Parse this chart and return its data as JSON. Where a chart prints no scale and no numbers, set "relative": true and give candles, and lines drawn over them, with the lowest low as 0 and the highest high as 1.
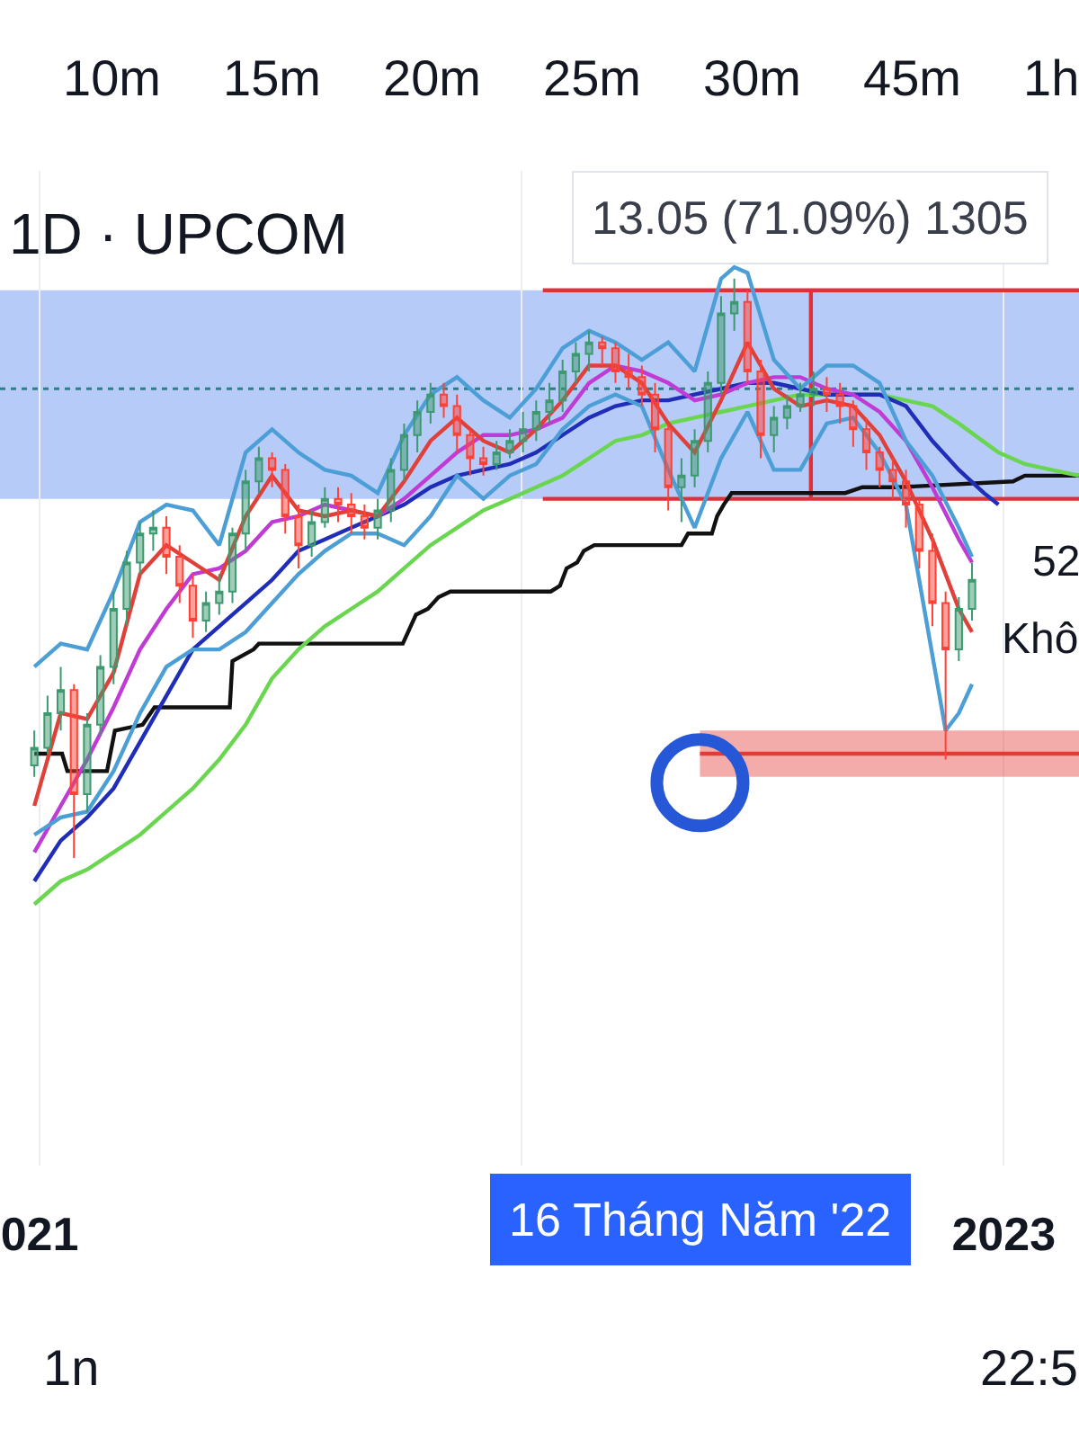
{
  "chart_data": {
    "type": "candlestick",
    "title": "1D · UPCOM",
    "relative": true,
    "x": [
      "2020-12-28",
      "2021-01-07",
      "2021-01-17",
      "2021-01-27",
      "2021-02-06",
      "2021-02-16",
      "2021-02-26",
      "2021-03-08",
      "2021-03-18",
      "2021-03-28",
      "2021-04-07",
      "2021-04-17",
      "2021-04-27",
      "2021-05-07",
      "2021-05-17",
      "2021-05-27",
      "2021-06-06",
      "2021-06-16",
      "2021-06-26",
      "2021-07-06",
      "2021-07-16",
      "2021-07-26",
      "2021-08-05",
      "2021-08-15",
      "2021-08-25",
      "2021-09-04",
      "2021-09-14",
      "2021-09-24",
      "2021-10-04",
      "2021-10-14",
      "2021-10-24",
      "2021-11-03",
      "2021-11-13",
      "2021-11-23",
      "2021-12-03",
      "2021-12-13",
      "2021-12-23",
      "2022-01-02",
      "2022-01-12",
      "2022-01-22",
      "2022-02-01",
      "2022-02-11",
      "2022-02-21",
      "2022-03-03",
      "2022-03-13",
      "2022-03-23",
      "2022-04-02",
      "2022-04-12",
      "2022-04-22",
      "2022-05-02",
      "2022-05-12",
      "2022-05-22",
      "2022-06-01",
      "2022-06-11",
      "2022-06-21",
      "2022-07-01",
      "2022-07-11",
      "2022-07-21",
      "2022-07-31",
      "2022-08-10",
      "2022-08-20",
      "2022-08-30",
      "2022-09-09",
      "2022-09-19",
      "2022-09-29",
      "2022-10-09",
      "2022-10-19",
      "2022-10-29",
      "2022-11-08",
      "2022-11-18",
      "2022-11-28",
      "2022-12-08"
    ],
    "ohlc": [
      [
        0.16,
        0.22,
        0.14,
        0.19
      ],
      [
        0.19,
        0.28,
        0.18,
        0.25
      ],
      [
        0.25,
        0.33,
        0.22,
        0.29
      ],
      [
        0.29,
        0.3,
        0.0,
        0.11
      ],
      [
        0.11,
        0.25,
        0.08,
        0.23
      ],
      [
        0.23,
        0.35,
        0.21,
        0.33
      ],
      [
        0.33,
        0.46,
        0.3,
        0.43
      ],
      [
        0.43,
        0.53,
        0.4,
        0.51
      ],
      [
        0.51,
        0.58,
        0.49,
        0.56
      ],
      [
        0.56,
        0.6,
        0.53,
        0.57
      ],
      [
        0.57,
        0.59,
        0.49,
        0.52
      ],
      [
        0.52,
        0.54,
        0.44,
        0.47
      ],
      [
        0.47,
        0.49,
        0.38,
        0.41
      ],
      [
        0.41,
        0.46,
        0.39,
        0.44
      ],
      [
        0.44,
        0.49,
        0.42,
        0.46
      ],
      [
        0.46,
        0.57,
        0.44,
        0.56
      ],
      [
        0.56,
        0.67,
        0.53,
        0.65
      ],
      [
        0.65,
        0.71,
        0.63,
        0.69
      ],
      [
        0.69,
        0.7,
        0.64,
        0.67
      ],
      [
        0.67,
        0.68,
        0.56,
        0.59
      ],
      [
        0.59,
        0.61,
        0.5,
        0.54
      ],
      [
        0.54,
        0.6,
        0.52,
        0.58
      ],
      [
        0.58,
        0.64,
        0.57,
        0.62
      ],
      [
        0.62,
        0.64,
        0.58,
        0.61
      ],
      [
        0.61,
        0.63,
        0.56,
        0.59
      ],
      [
        0.59,
        0.61,
        0.55,
        0.57
      ],
      [
        0.57,
        0.62,
        0.55,
        0.6
      ],
      [
        0.6,
        0.69,
        0.58,
        0.67
      ],
      [
        0.67,
        0.75,
        0.65,
        0.73
      ],
      [
        0.73,
        0.79,
        0.7,
        0.77
      ],
      [
        0.77,
        0.82,
        0.75,
        0.8
      ],
      [
        0.8,
        0.82,
        0.76,
        0.78
      ],
      [
        0.78,
        0.8,
        0.7,
        0.73
      ],
      [
        0.73,
        0.74,
        0.66,
        0.69
      ],
      [
        0.69,
        0.71,
        0.66,
        0.68
      ],
      [
        0.68,
        0.72,
        0.67,
        0.7
      ],
      [
        0.7,
        0.74,
        0.69,
        0.72
      ],
      [
        0.72,
        0.77,
        0.7,
        0.74
      ],
      [
        0.74,
        0.79,
        0.72,
        0.77
      ],
      [
        0.77,
        0.82,
        0.75,
        0.79
      ],
      [
        0.79,
        0.86,
        0.77,
        0.84
      ],
      [
        0.84,
        0.89,
        0.82,
        0.87
      ],
      [
        0.87,
        0.91,
        0.84,
        0.89
      ],
      [
        0.89,
        0.9,
        0.85,
        0.88
      ],
      [
        0.88,
        0.89,
        0.82,
        0.84
      ],
      [
        0.84,
        0.87,
        0.81,
        0.83
      ],
      [
        0.83,
        0.85,
        0.78,
        0.8
      ],
      [
        0.8,
        0.82,
        0.7,
        0.74
      ],
      [
        0.74,
        0.75,
        0.6,
        0.64
      ],
      [
        0.64,
        0.69,
        0.58,
        0.66
      ],
      [
        0.66,
        0.74,
        0.64,
        0.72
      ],
      [
        0.72,
        0.84,
        0.7,
        0.82
      ],
      [
        0.82,
        0.97,
        0.8,
        0.94
      ],
      [
        0.94,
        1.0,
        0.91,
        0.96
      ],
      [
        0.96,
        0.98,
        0.82,
        0.84
      ],
      [
        0.84,
        0.86,
        0.69,
        0.73
      ],
      [
        0.73,
        0.78,
        0.7,
        0.76
      ],
      [
        0.76,
        0.8,
        0.74,
        0.78
      ],
      [
        0.78,
        0.82,
        0.77,
        0.8
      ],
      [
        0.8,
        0.84,
        0.78,
        0.81
      ],
      [
        0.81,
        0.83,
        0.77,
        0.8
      ],
      [
        0.8,
        0.82,
        0.75,
        0.78
      ],
      [
        0.78,
        0.79,
        0.71,
        0.74
      ],
      [
        0.74,
        0.76,
        0.67,
        0.7
      ],
      [
        0.7,
        0.71,
        0.64,
        0.67
      ],
      [
        0.67,
        0.69,
        0.62,
        0.65
      ],
      [
        0.65,
        0.67,
        0.57,
        0.61
      ],
      [
        0.61,
        0.62,
        0.5,
        0.53
      ],
      [
        0.53,
        0.56,
        0.4,
        0.44
      ],
      [
        0.44,
        0.46,
        0.17,
        0.36
      ],
      [
        0.36,
        0.45,
        0.34,
        0.43
      ],
      [
        0.43,
        0.51,
        0.41,
        0.48
      ]
    ],
    "xlim": [
      "2020-12-02",
      "2023-02-27"
    ],
    "xticks": [
      {
        "value": "2021-01-01",
        "label": "021"
      },
      {
        "value": "2022-01-01",
        "label": null
      },
      {
        "value": "2023-01-01",
        "label": "2023"
      }
    ],
    "grid": "x",
    "bands": [
      {
        "axis": "y",
        "from": 0.62,
        "to": 0.98,
        "color": "#b7cbf8"
      }
    ],
    "ref_lines": [
      {
        "axis": "y",
        "value": 0.81,
        "color": "#2e7d86",
        "line_style": "dotted"
      }
    ],
    "series": [
      {
        "type": "line",
        "color": "#e0303a",
        "x": [
          "2022-01-17",
          "2023-02-27"
        ],
        "values": [
          0.98,
          0.98
        ]
      },
      {
        "type": "line",
        "color": "#e0303a",
        "x": [
          "2022-01-17",
          "2023-02-27"
        ],
        "values": [
          0.62,
          0.62
        ]
      },
      {
        "type": "line",
        "color": "#e0303a",
        "x": [
          "2022-08-08",
          "2022-08-08"
        ],
        "values": [
          0.62,
          0.98
        ]
      },
      {
        "type": "line",
        "color": "#111111",
        "x": [
          "2020-12-28",
          "2021-01-18",
          "2021-01-22",
          "2021-02-21",
          "2021-02-27",
          "2021-03-20",
          "2021-03-29",
          "2021-05-25",
          "2021-05-27",
          "2021-06-12",
          "2021-06-16",
          "2021-10-03",
          "2021-10-13",
          "2021-10-22",
          "2021-10-30",
          "2021-11-08",
          "2022-01-23",
          "2022-01-30",
          "2022-02-04",
          "2022-02-12",
          "2022-02-17",
          "2022-02-25",
          "2022-05-02",
          "2022-05-07",
          "2022-05-25",
          "2022-05-29",
          "2022-06-03",
          "2022-06-09",
          "2022-09-03",
          "2022-09-16",
          "2022-10-13",
          "2023-01-08",
          "2023-01-17",
          "2023-02-27"
        ],
        "values": [
          0.18,
          0.18,
          0.15,
          0.15,
          0.22,
          0.23,
          0.26,
          0.26,
          0.34,
          0.36,
          0.37,
          0.37,
          0.42,
          0.43,
          0.45,
          0.46,
          0.46,
          0.47,
          0.5,
          0.51,
          0.53,
          0.54,
          0.54,
          0.56,
          0.56,
          0.59,
          0.61,
          0.63,
          0.63,
          0.64,
          0.64,
          0.65,
          0.66,
          0.66
        ]
      },
      {
        "type": "line",
        "color": "#6ad64f",
        "x": [
          "2020-12-28",
          "2021-01-17",
          "2021-02-06",
          "2021-02-26",
          "2021-03-18",
          "2021-04-07",
          "2021-04-27",
          "2021-05-17",
          "2021-06-06",
          "2021-06-26",
          "2021-07-16",
          "2021-08-05",
          "2021-08-25",
          "2021-09-14",
          "2021-10-04",
          "2021-10-24",
          "2021-11-13",
          "2021-12-03",
          "2021-12-23",
          "2022-01-12",
          "2022-02-01",
          "2022-02-21",
          "2022-03-13",
          "2022-04-02",
          "2022-04-22",
          "2022-05-12",
          "2022-06-01",
          "2022-06-21",
          "2022-07-11",
          "2022-07-31",
          "2022-08-20",
          "2022-09-09",
          "2022-09-29",
          "2022-10-19",
          "2022-11-08",
          "2022-11-28",
          "2022-12-28",
          "2023-01-17",
          "2023-02-06",
          "2023-02-27"
        ],
        "values": [
          -0.08,
          -0.04,
          -0.02,
          0.01,
          0.04,
          0.08,
          0.12,
          0.17,
          0.23,
          0.31,
          0.36,
          0.4,
          0.43,
          0.46,
          0.5,
          0.54,
          0.57,
          0.6,
          0.62,
          0.64,
          0.66,
          0.69,
          0.72,
          0.73,
          0.75,
          0.76,
          0.77,
          0.78,
          0.79,
          0.8,
          0.8,
          0.8,
          0.8,
          0.79,
          0.78,
          0.75,
          0.7,
          0.68,
          0.67,
          0.66
        ]
      },
      {
        "type": "line",
        "color": "#1f2db8",
        "x": [
          "2020-12-28",
          "2021-01-17",
          "2021-02-06",
          "2021-02-26",
          "2021-03-18",
          "2021-04-07",
          "2021-04-27",
          "2021-05-17",
          "2021-06-06",
          "2021-06-26",
          "2021-07-16",
          "2021-08-05",
          "2021-08-25",
          "2021-09-14",
          "2021-10-04",
          "2021-10-24",
          "2021-11-13",
          "2021-12-03",
          "2021-12-23",
          "2022-01-12",
          "2022-02-01",
          "2022-02-21",
          "2022-03-13",
          "2022-04-02",
          "2022-04-22",
          "2022-05-12",
          "2022-06-01",
          "2022-06-21",
          "2022-07-11",
          "2022-07-31",
          "2022-08-20",
          "2022-09-09",
          "2022-09-29",
          "2022-10-19",
          "2022-11-08",
          "2022-11-28",
          "2022-12-17",
          "2022-12-28"
        ],
        "values": [
          -0.04,
          0.03,
          0.07,
          0.12,
          0.2,
          0.28,
          0.36,
          0.4,
          0.44,
          0.48,
          0.53,
          0.55,
          0.57,
          0.59,
          0.61,
          0.64,
          0.66,
          0.67,
          0.68,
          0.7,
          0.73,
          0.76,
          0.78,
          0.79,
          0.79,
          0.8,
          0.81,
          0.82,
          0.82,
          0.81,
          0.8,
          0.8,
          0.8,
          0.78,
          0.72,
          0.67,
          0.63,
          0.61
        ]
      },
      {
        "type": "line",
        "color": "#c03ad6",
        "x": [
          "2020-12-28",
          "2021-01-17",
          "2021-02-06",
          "2021-02-26",
          "2021-03-18",
          "2021-04-07",
          "2021-04-27",
          "2021-05-17",
          "2021-06-06",
          "2021-06-26",
          "2021-07-16",
          "2021-08-05",
          "2021-08-25",
          "2021-09-14",
          "2021-10-04",
          "2021-10-24",
          "2021-11-13",
          "2021-12-03",
          "2021-12-23",
          "2022-01-12",
          "2022-02-01",
          "2022-02-21",
          "2022-03-13",
          "2022-04-02",
          "2022-04-22",
          "2022-05-12",
          "2022-06-01",
          "2022-06-21",
          "2022-07-11",
          "2022-07-31",
          "2022-08-20",
          "2022-09-09",
          "2022-09-29",
          "2022-10-19",
          "2022-11-08",
          "2022-11-28",
          "2022-12-08"
        ],
        "values": [
          0.01,
          0.09,
          0.17,
          0.26,
          0.36,
          0.43,
          0.49,
          0.5,
          0.53,
          0.58,
          0.59,
          0.61,
          0.6,
          0.59,
          0.62,
          0.66,
          0.7,
          0.73,
          0.73,
          0.74,
          0.76,
          0.82,
          0.85,
          0.84,
          0.82,
          0.79,
          0.8,
          0.82,
          0.83,
          0.83,
          0.81,
          0.8,
          0.77,
          0.72,
          0.64,
          0.55,
          0.51
        ]
      },
      {
        "type": "line",
        "color": "#e0403a",
        "x": [
          "2020-12-28",
          "2021-01-17",
          "2021-02-06",
          "2021-02-26",
          "2021-03-18",
          "2021-04-07",
          "2021-04-27",
          "2021-05-17",
          "2021-06-06",
          "2021-06-26",
          "2021-07-16",
          "2021-08-05",
          "2021-08-25",
          "2021-09-14",
          "2021-10-04",
          "2021-10-24",
          "2021-11-13",
          "2021-12-03",
          "2021-12-23",
          "2022-01-12",
          "2022-02-01",
          "2022-02-21",
          "2022-03-13",
          "2022-04-02",
          "2022-04-22",
          "2022-05-12",
          "2022-06-01",
          "2022-06-21",
          "2022-07-11",
          "2022-07-31",
          "2022-08-20",
          "2022-09-09",
          "2022-09-29",
          "2022-10-19",
          "2022-11-08",
          "2022-11-28",
          "2022-12-08"
        ],
        "values": [
          0.09,
          0.25,
          0.24,
          0.32,
          0.49,
          0.54,
          0.51,
          0.48,
          0.59,
          0.66,
          0.6,
          0.59,
          0.6,
          0.59,
          0.65,
          0.72,
          0.76,
          0.72,
          0.7,
          0.74,
          0.79,
          0.85,
          0.85,
          0.82,
          0.75,
          0.7,
          0.79,
          0.89,
          0.81,
          0.78,
          0.79,
          0.78,
          0.73,
          0.65,
          0.55,
          0.43,
          0.39
        ]
      },
      {
        "type": "line",
        "color": "#4c9fd6",
        "x": [
          "2020-12-28",
          "2021-01-17",
          "2021-02-06",
          "2021-02-26",
          "2021-03-18",
          "2021-04-07",
          "2021-04-27",
          "2021-05-17",
          "2021-06-06",
          "2021-06-26",
          "2021-07-16",
          "2021-08-05",
          "2021-08-25",
          "2021-09-14",
          "2021-10-04",
          "2021-10-24",
          "2021-11-13",
          "2021-12-03",
          "2021-12-23",
          "2022-01-12",
          "2022-02-01",
          "2022-02-21",
          "2022-03-13",
          "2022-04-02",
          "2022-04-22",
          "2022-05-12",
          "2022-06-01",
          "2022-06-11",
          "2022-06-21",
          "2022-07-11",
          "2022-07-31",
          "2022-08-20",
          "2022-09-09",
          "2022-09-29",
          "2022-10-19",
          "2022-11-08",
          "2022-11-28",
          "2022-12-08"
        ],
        "values": [
          0.33,
          0.37,
          0.36,
          0.46,
          0.58,
          0.61,
          0.6,
          0.54,
          0.7,
          0.74,
          0.7,
          0.67,
          0.66,
          0.63,
          0.73,
          0.8,
          0.83,
          0.79,
          0.76,
          0.81,
          0.88,
          0.91,
          0.89,
          0.86,
          0.89,
          0.84,
          1.0,
          1.02,
          1.01,
          0.86,
          0.81,
          0.85,
          0.85,
          0.82,
          0.72,
          0.66,
          0.57,
          0.52
        ]
      },
      {
        "type": "line",
        "color": "#4c9fd6",
        "x": [
          "2020-12-28",
          "2021-01-17",
          "2021-02-06",
          "2021-02-26",
          "2021-03-18",
          "2021-04-07",
          "2021-04-27",
          "2021-05-17",
          "2021-06-06",
          "2021-06-26",
          "2021-07-16",
          "2021-08-05",
          "2021-08-25",
          "2021-09-14",
          "2021-10-04",
          "2021-10-24",
          "2021-11-13",
          "2021-12-03",
          "2021-12-23",
          "2022-01-12",
          "2022-02-01",
          "2022-02-21",
          "2022-03-13",
          "2022-04-02",
          "2022-04-22",
          "2022-05-12",
          "2022-06-01",
          "2022-06-21",
          "2022-07-11",
          "2022-07-31",
          "2022-08-20",
          "2022-09-09",
          "2022-09-29",
          "2022-10-19",
          "2022-11-08",
          "2022-11-18",
          "2022-11-28",
          "2022-12-08"
        ],
        "values": [
          0.04,
          0.07,
          0.08,
          0.15,
          0.25,
          0.33,
          0.36,
          0.36,
          0.39,
          0.44,
          0.49,
          0.53,
          0.56,
          0.56,
          0.54,
          0.59,
          0.66,
          0.62,
          0.66,
          0.68,
          0.74,
          0.78,
          0.8,
          0.78,
          0.67,
          0.57,
          0.69,
          0.77,
          0.67,
          0.67,
          0.75,
          0.76,
          0.7,
          0.61,
          0.35,
          0.22,
          0.25,
          0.3
        ]
      },
      {
        "type": "line",
        "color": "#e53935",
        "x": [
          "2022-05-16",
          "2023-02-27"
        ],
        "values": [
          0.18,
          0.18
        ],
        "lower": [
          0.14,
          0.14
        ],
        "upper": [
          0.22,
          0.22
        ]
      },
      {
        "type": "scatter",
        "color": "#2557d6",
        "x": [
          "2022-05-16"
        ],
        "values": [
          0.13
        ],
        "marker": "circle"
      }
    ],
    "annotations": [
      "10m",
      "15m",
      "20m",
      "25m",
      "30m",
      "45m",
      "1h",
      {
        "text": "13.05 (71.09%) 1305",
        "x": "2022-08-08",
        "y": 0.98
      },
      "52",
      "Khô",
      "16 Tháng Năm '22",
      "1n",
      "22:5"
    ]
  }
}
